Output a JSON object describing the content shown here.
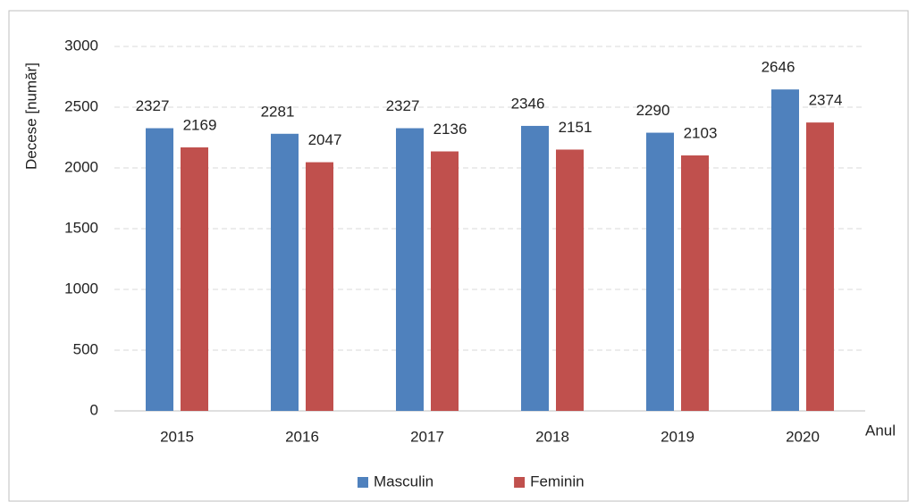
{
  "chart_data": {
    "type": "bar",
    "y_label": "Decese [număr]",
    "x_label": "Anul",
    "categories": [
      "2015",
      "2016",
      "2017",
      "2018",
      "2019",
      "2020"
    ],
    "series": [
      {
        "name": "Masculin",
        "color": "#4f81bd",
        "values": [
          2327,
          2281,
          2327,
          2346,
          2290,
          2646
        ]
      },
      {
        "name": "Feminin",
        "color": "#c0504d",
        "values": [
          2169,
          2047,
          2136,
          2151,
          2103,
          2374
        ]
      }
    ],
    "ylim": [
      0,
      3000
    ],
    "yticks": [
      0,
      500,
      1000,
      1500,
      2000,
      2500,
      3000
    ],
    "grid": true,
    "legend": "bottom"
  }
}
